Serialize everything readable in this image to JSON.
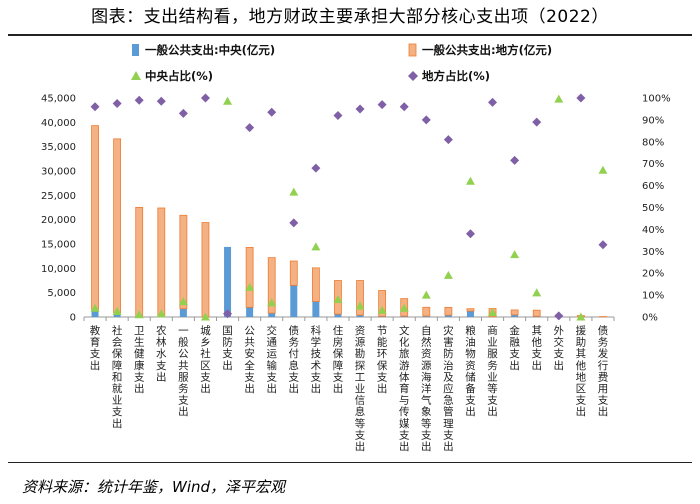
{
  "title": "图表：支出结构看，地方财政主要承担大部分核心支出项（2022）",
  "source": "资料来源：统计年鉴，Wind，泽平宏观",
  "colors": {
    "central": "#5b9bd5",
    "local": "#f4b183",
    "local_edge": "#ed7d31",
    "central_ratio": "#92d050",
    "local_ratio": "#7f5fa5"
  },
  "chart_data": {
    "type": "bar",
    "stacked": true,
    "legend": [
      {
        "key": "central",
        "label": "一般公共支出:中央(亿元)"
      },
      {
        "key": "local",
        "label": "一般公共支出:地方(亿元)"
      },
      {
        "key": "central_ratio",
        "label": "中央占比(%)"
      },
      {
        "key": "local_ratio",
        "label": "地方占比(%)"
      }
    ],
    "categories": [
      "教育支出",
      "社会保障和就业支出",
      "卫生健康支出",
      "农林水支出",
      "一般公共服务支出",
      "城乡社区支出",
      "国防支出",
      "公共安全支出",
      "交通运输支出",
      "债务付息支出",
      "科学技术支出",
      "住房保障支出",
      "资源勘探工业信息等支出",
      "节能环保支出",
      "文化旅游体育与传媒支出",
      "自然资源海洋气象等支出",
      "灾害防治及应急管理支出",
      "粮油物资储备支出",
      "商业服务业等支出",
      "金融支出",
      "其他支出",
      "外交支出",
      "援助其他地区支出",
      "债务发行费用支出"
    ],
    "series": [
      {
        "name": "一般公共支出:中央(亿元)",
        "axis": "left",
        "values": [
          1520,
          900,
          230,
          300,
          1700,
          10,
          14400,
          2000,
          800,
          6500,
          3200,
          600,
          400,
          150,
          180,
          200,
          380,
          1200,
          40,
          450,
          150,
          500,
          0,
          30
        ]
      },
      {
        "name": "一般公共支出:地方(亿元)",
        "axis": "left",
        "values": [
          37800,
          35700,
          22300,
          22100,
          19200,
          19400,
          0,
          12300,
          11400,
          5000,
          6900,
          6900,
          7100,
          5300,
          3600,
          1800,
          1600,
          500,
          1700,
          1000,
          1250,
          0,
          300,
          60
        ]
      },
      {
        "name": "中央占比(%)",
        "axis": "right",
        "values": [
          4,
          2.5,
          1,
          1.5,
          7,
          0,
          98.5,
          13.5,
          6.5,
          57,
          32,
          8,
          5,
          3,
          4,
          10,
          19,
          62,
          2,
          28.5,
          11,
          99.5,
          0,
          67
        ]
      },
      {
        "name": "地方占比(%)",
        "axis": "right",
        "values": [
          96,
          97.5,
          99,
          98.5,
          93,
          100,
          1.5,
          86.5,
          93.5,
          43,
          68,
          92,
          95,
          97,
          96,
          90,
          81,
          38,
          98,
          71.5,
          89,
          0.5,
          100,
          33
        ]
      }
    ],
    "ylim_left": [
      0,
      45000
    ],
    "yticks_left": [
      "0",
      "5,000",
      "10,000",
      "15,000",
      "20,000",
      "25,000",
      "30,000",
      "35,000",
      "40,000",
      "45,000"
    ],
    "ylim_right": [
      0,
      100
    ],
    "yticks_right": [
      "0%",
      "10%",
      "20%",
      "30%",
      "40%",
      "50%",
      "60%",
      "70%",
      "80%",
      "90%",
      "100%"
    ]
  }
}
